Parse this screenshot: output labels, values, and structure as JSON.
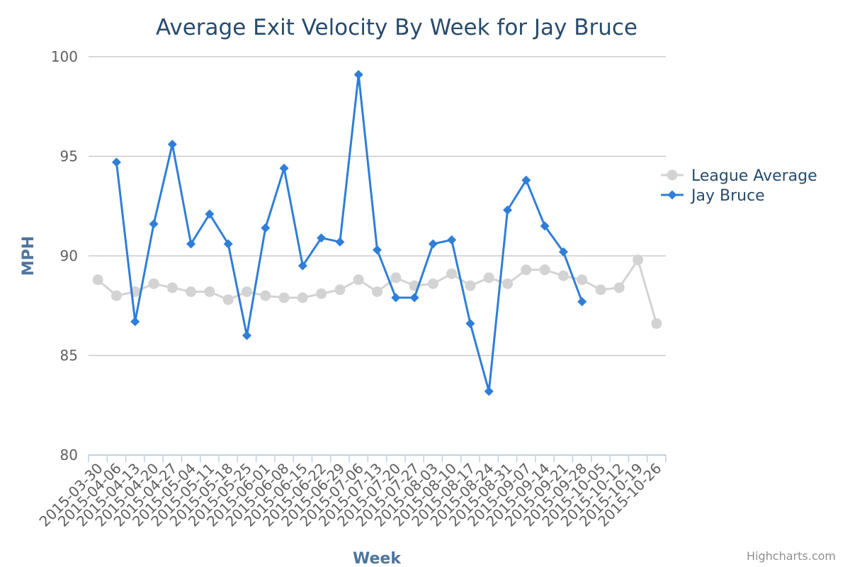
{
  "chart_data": {
    "type": "line",
    "title": "Average Exit Velocity By Week for Jay Bruce",
    "xlabel": "Week",
    "ylabel": "MPH",
    "ylim": [
      80,
      100
    ],
    "yticks": [
      80,
      85,
      90,
      95,
      100
    ],
    "grid": true,
    "legend_position": "right",
    "categories": [
      "2015-03-30",
      "2015-04-06",
      "2015-04-13",
      "2015-04-20",
      "2015-04-27",
      "2015-05-04",
      "2015-05-11",
      "2015-05-18",
      "2015-05-25",
      "2015-06-01",
      "2015-06-08",
      "2015-06-15",
      "2015-06-22",
      "2015-06-29",
      "2015-07-06",
      "2015-07-13",
      "2015-07-20",
      "2015-07-27",
      "2015-08-03",
      "2015-08-10",
      "2015-08-17",
      "2015-08-24",
      "2015-08-31",
      "2015-09-07",
      "2015-09-14",
      "2015-09-21",
      "2015-09-28",
      "2015-10-05",
      "2015-10-12",
      "2015-10-19",
      "2015-10-26"
    ],
    "series": [
      {
        "name": "League Average",
        "color": "#d3d3d3",
        "marker": "circle",
        "values": [
          88.8,
          88.0,
          88.2,
          88.6,
          88.4,
          88.2,
          88.2,
          87.8,
          88.2,
          88.0,
          87.9,
          87.9,
          88.1,
          88.3,
          88.8,
          88.2,
          88.9,
          88.5,
          88.6,
          89.1,
          88.5,
          88.9,
          88.6,
          89.3,
          89.3,
          89.0,
          88.8,
          88.3,
          88.4,
          89.8,
          86.6
        ]
      },
      {
        "name": "Jay Bruce",
        "color": "#2f7ed8",
        "marker": "diamond",
        "values": [
          null,
          94.7,
          86.7,
          91.6,
          95.6,
          90.6,
          92.1,
          90.6,
          86.0,
          91.4,
          94.4,
          89.5,
          90.9,
          90.7,
          99.1,
          90.3,
          87.9,
          87.9,
          90.6,
          90.8,
          86.6,
          83.2,
          92.3,
          93.8,
          91.5,
          90.2,
          87.7,
          null,
          null,
          null,
          null
        ]
      }
    ]
  },
  "credits": "Highcharts.com"
}
